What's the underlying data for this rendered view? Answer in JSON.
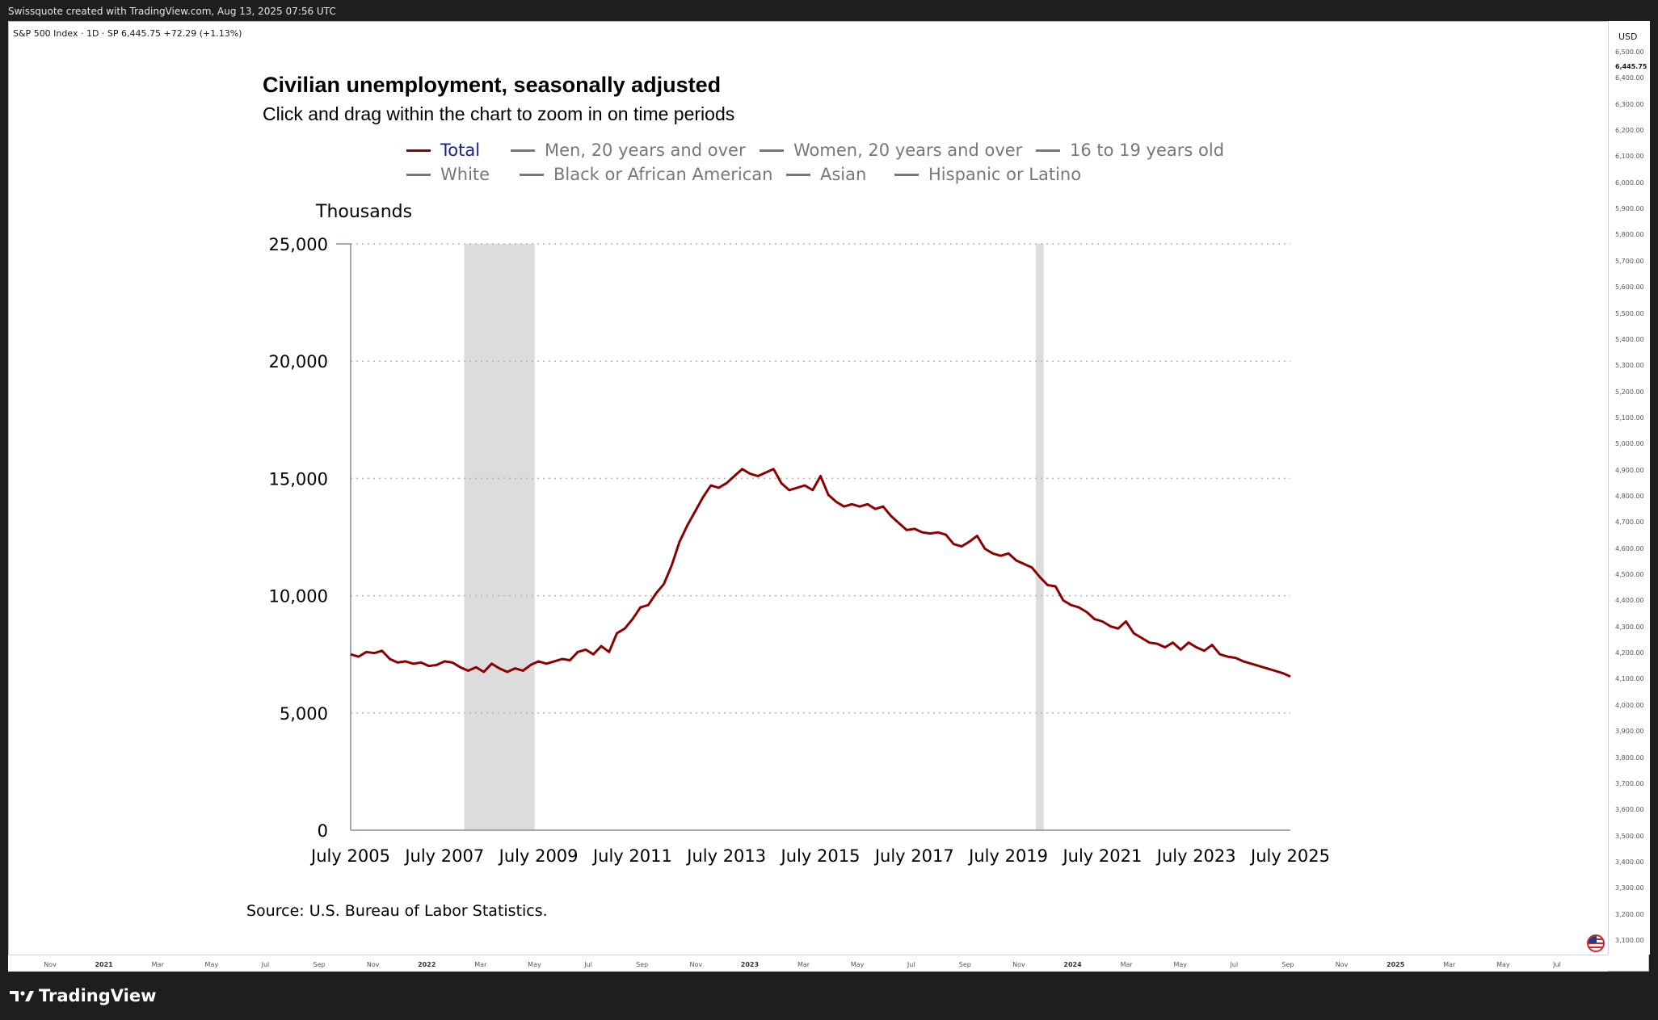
{
  "header": {
    "text": "Swissquote created with TradingView.com, Aug 13, 2025 07:56 UTC"
  },
  "symbol": {
    "name": "S&P 500 Index · 1D · SP",
    "price": "6,445.75",
    "change": "+72.29 (+1.13%)"
  },
  "price_scale": {
    "currency": "USD",
    "labels": [
      "6,500.00",
      "6,445.75",
      "6,400.00",
      "6,300.00",
      "6,200.00",
      "6,100.00",
      "6,000.00",
      "5,900.00",
      "5,800.00",
      "5,700.00",
      "5,600.00",
      "5,500.00",
      "5,400.00",
      "5,300.00",
      "5,200.00",
      "5,100.00",
      "5,000.00",
      "4,900.00",
      "4,800.00",
      "4,700.00",
      "4,600.00",
      "4,500.00",
      "4,400.00",
      "4,300.00",
      "4,200.00",
      "4,100.00",
      "4,000.00",
      "3,900.00",
      "3,800.00",
      "3,700.00",
      "3,600.00",
      "3,500.00",
      "3,400.00",
      "3,300.00",
      "3,200.00",
      "3,100.00"
    ]
  },
  "time_scale": {
    "labels": [
      "Nov",
      "2021",
      "Mar",
      "May",
      "Jul",
      "Sep",
      "Nov",
      "2022",
      "Mar",
      "May",
      "Jul",
      "Sep",
      "Nov",
      "2023",
      "Mar",
      "May",
      "Jul",
      "Sep",
      "Nov",
      "2024",
      "Mar",
      "May",
      "Jul",
      "Sep",
      "Nov",
      "2025",
      "Mar",
      "May",
      "Jul"
    ]
  },
  "footer": {
    "brand": "TradingView"
  },
  "colors": {
    "series": "#8b0000",
    "recession": "#dcdcdc",
    "inactive": "#777777",
    "active_legend": "#1a237e"
  },
  "chart_data": {
    "type": "line",
    "title": "Civilian unemployment, seasonally adjusted",
    "subtitle": "Click and drag within the chart to zoom in on time periods",
    "ylabel": "Thousands",
    "source": "Source: U.S. Bureau of Labor Statistics.",
    "ylim": [
      0,
      25000
    ],
    "xlim": [
      "2005-07",
      "2025-07"
    ],
    "y_ticks": [
      "0",
      "5,000",
      "10,000",
      "15,000",
      "20,000",
      "25,000"
    ],
    "x_ticks": [
      "July 2005",
      "July 2007",
      "July 2009",
      "July 2011",
      "July 2013",
      "July 2015",
      "July 2017",
      "July 2019",
      "July 2021",
      "July 2023",
      "July 2025"
    ],
    "grid": "horizontal dotted",
    "legend": [
      {
        "name": "Total",
        "active": true
      },
      {
        "name": "Men, 20 years and over",
        "active": false
      },
      {
        "name": "Women, 20 years and over",
        "active": false
      },
      {
        "name": "16 to 19 years old",
        "active": false
      },
      {
        "name": "White",
        "active": false
      },
      {
        "name": "Black or African American",
        "active": false
      },
      {
        "name": "Asian",
        "active": false
      },
      {
        "name": "Hispanic or Latino",
        "active": false
      }
    ],
    "recession_shading": [
      {
        "from": "2007-12",
        "to": "2009-06"
      },
      {
        "from": "2020-02",
        "to": "2020-04"
      }
    ],
    "series": [
      {
        "name": "Total",
        "points": [
          [
            "2005-07",
            7500
          ],
          [
            "2005-09",
            7400
          ],
          [
            "2005-11",
            7600
          ],
          [
            "2006-01",
            7550
          ],
          [
            "2006-03",
            7650
          ],
          [
            "2006-05",
            7300
          ],
          [
            "2006-07",
            7150
          ],
          [
            "2006-09",
            7200
          ],
          [
            "2006-11",
            7100
          ],
          [
            "2007-01",
            7150
          ],
          [
            "2007-03",
            7000
          ],
          [
            "2007-05",
            7050
          ],
          [
            "2007-07",
            7200
          ],
          [
            "2007-09",
            7150
          ],
          [
            "2007-11",
            6950
          ],
          [
            "2008-01",
            6800
          ],
          [
            "2008-03",
            6950
          ],
          [
            "2008-05",
            6750
          ],
          [
            "2008-07",
            7100
          ],
          [
            "2008-09",
            6900
          ],
          [
            "2008-11",
            6750
          ],
          [
            "2009-01",
            6900
          ],
          [
            "2009-03",
            6800
          ],
          [
            "2009-05",
            7050
          ],
          [
            "2009-07",
            7200
          ],
          [
            "2009-09",
            7100
          ],
          [
            "2009-11",
            7200
          ],
          [
            "2010-01",
            7300
          ],
          [
            "2010-03",
            7250
          ],
          [
            "2010-05",
            7600
          ],
          [
            "2010-07",
            7700
          ],
          [
            "2010-09",
            7500
          ],
          [
            "2010-11",
            7850
          ],
          [
            "2011-01",
            7600
          ],
          [
            "2011-03",
            8400
          ],
          [
            "2011-05",
            8600
          ],
          [
            "2011-07",
            9000
          ],
          [
            "2011-09",
            9500
          ],
          [
            "2011-11",
            9600
          ],
          [
            "2012-01",
            10100
          ],
          [
            "2012-03",
            10500
          ],
          [
            "2012-05",
            11300
          ],
          [
            "2012-07",
            12300
          ],
          [
            "2012-09",
            13000
          ],
          [
            "2012-11",
            13600
          ],
          [
            "2013-01",
            14200
          ],
          [
            "2013-03",
            14700
          ],
          [
            "2013-05",
            14600
          ],
          [
            "2013-07",
            14800
          ],
          [
            "2013-09",
            15100
          ],
          [
            "2013-11",
            15400
          ],
          [
            "2014-01",
            15200
          ],
          [
            "2014-03",
            15100
          ],
          [
            "2014-05",
            15250
          ],
          [
            "2014-07",
            15400
          ],
          [
            "2014-09",
            14800
          ],
          [
            "2014-11",
            14500
          ],
          [
            "2015-01",
            14600
          ],
          [
            "2015-03",
            14700
          ],
          [
            "2015-05",
            14500
          ],
          [
            "2015-07",
            15100
          ],
          [
            "2015-09",
            14300
          ],
          [
            "2015-11",
            14000
          ],
          [
            "2016-01",
            13800
          ],
          [
            "2016-03",
            13900
          ],
          [
            "2016-05",
            13800
          ],
          [
            "2016-07",
            13900
          ],
          [
            "2016-09",
            13700
          ],
          [
            "2016-11",
            13800
          ],
          [
            "2017-01",
            13400
          ],
          [
            "2017-03",
            13100
          ],
          [
            "2017-05",
            12800
          ],
          [
            "2017-07",
            12850
          ],
          [
            "2017-09",
            12700
          ],
          [
            "2017-11",
            12650
          ],
          [
            "2018-01",
            12700
          ],
          [
            "2018-03",
            12600
          ],
          [
            "2018-05",
            12200
          ],
          [
            "2018-07",
            12100
          ],
          [
            "2018-09",
            12300
          ],
          [
            "2018-11",
            12550
          ],
          [
            "2019-01",
            12000
          ],
          [
            "2019-03",
            11800
          ],
          [
            "2019-05",
            11700
          ],
          [
            "2019-07",
            11800
          ],
          [
            "2019-09",
            11500
          ],
          [
            "2019-11",
            11350
          ],
          [
            "2020-01",
            11200
          ],
          [
            "2020-03",
            10800
          ],
          [
            "2020-05",
            10450
          ],
          [
            "2020-07",
            10400
          ],
          [
            "2020-09",
            9800
          ],
          [
            "2020-11",
            9600
          ],
          [
            "2021-01",
            9500
          ],
          [
            "2021-03",
            9300
          ],
          [
            "2021-05",
            9000
          ],
          [
            "2021-07",
            8900
          ],
          [
            "2021-09",
            8700
          ],
          [
            "2021-11",
            8600
          ],
          [
            "2022-01",
            8900
          ],
          [
            "2022-03",
            8400
          ],
          [
            "2022-05",
            8200
          ],
          [
            "2022-07",
            8000
          ],
          [
            "2022-09",
            7950
          ],
          [
            "2022-11",
            7800
          ],
          [
            "2023-01",
            8000
          ],
          [
            "2023-03",
            7700
          ],
          [
            "2023-05",
            8000
          ],
          [
            "2023-07",
            7800
          ],
          [
            "2023-09",
            7650
          ],
          [
            "2023-11",
            7900
          ],
          [
            "2024-01",
            7500
          ],
          [
            "2024-03",
            7400
          ],
          [
            "2024-05",
            7350
          ],
          [
            "2024-07",
            7200
          ],
          [
            "2024-09",
            7100
          ],
          [
            "2024-11",
            7000
          ],
          [
            "2025-01",
            6900
          ],
          [
            "2025-03",
            6800
          ],
          [
            "2025-05",
            6700
          ],
          [
            "2025-07",
            6550
          ]
        ]
      }
    ]
  }
}
